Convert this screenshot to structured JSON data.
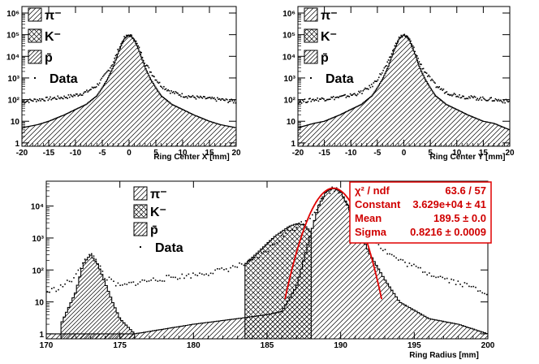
{
  "colors": {
    "fit": "#e00000",
    "stat_box": "#e00000",
    "data": "#000000",
    "frame": "#000000"
  },
  "chart_data": [
    {
      "type": "histogram",
      "log_y": true,
      "xlabel": "Ring Center X [mm]",
      "xlim": [
        -20,
        20
      ],
      "ylim": [
        0.7,
        2000000
      ],
      "x_ticks": [
        "-20",
        "-15",
        "-10",
        "-5",
        "0",
        "5",
        "10",
        "15",
        "20"
      ],
      "y_ticks": [
        "1",
        "10",
        "10²",
        "10³",
        "10⁴",
        "10⁵",
        "10⁶"
      ],
      "legend": [
        "π⁻",
        "K⁻",
        "p̄",
        "Data"
      ],
      "stacks": {
        "pion": {
          "x": [
            -20,
            -17,
            -15,
            -12,
            -10,
            -8,
            -6,
            -5,
            -4,
            -3,
            -2,
            -1,
            0,
            1,
            2,
            3,
            4,
            5,
            6,
            8,
            10,
            12,
            15,
            17,
            20
          ],
          "y": [
            5,
            7,
            10,
            20,
            35,
            60,
            150,
            350,
            900,
            3000,
            15000,
            60000,
            100000,
            60000,
            15000,
            3000,
            900,
            350,
            150,
            60,
            35,
            20,
            10,
            7,
            5
          ]
        },
        "data": {
          "x": [
            -20,
            -17,
            -15,
            -12,
            -10,
            -8,
            -6,
            -5,
            -4,
            -3,
            -2,
            -1,
            0,
            1,
            2,
            3,
            4,
            5,
            6,
            8,
            10,
            12,
            15,
            17,
            20
          ],
          "y": [
            80,
            100,
            110,
            130,
            160,
            220,
            450,
            900,
            2000,
            5000,
            20000,
            65000,
            100000,
            65000,
            20000,
            5000,
            2000,
            900,
            450,
            220,
            160,
            130,
            110,
            100,
            80
          ]
        }
      }
    },
    {
      "type": "histogram",
      "log_y": true,
      "xlabel": "Ring Center Y [mm]",
      "xlim": [
        -20,
        20
      ],
      "ylim": [
        0.7,
        2000000
      ],
      "x_ticks": [
        "-20",
        "-15",
        "-10",
        "-5",
        "0",
        "5",
        "10",
        "15",
        "20"
      ],
      "y_ticks": [
        "1",
        "10",
        "10²",
        "10³",
        "10⁴",
        "10⁵",
        "10⁶"
      ],
      "legend": [
        "π⁻",
        "K⁻",
        "p̄",
        "Data"
      ],
      "stacks": {
        "pion": {
          "x": [
            -20,
            -17,
            -15,
            -12,
            -10,
            -8,
            -6,
            -5,
            -4,
            -3,
            -2,
            -1,
            0,
            1,
            2,
            3,
            4,
            5,
            6,
            8,
            10,
            12,
            15,
            17,
            20
          ],
          "y": [
            5,
            8,
            10,
            20,
            35,
            60,
            150,
            350,
            900,
            3000,
            15000,
            60000,
            100000,
            60000,
            15000,
            3000,
            900,
            350,
            150,
            60,
            35,
            20,
            10,
            8,
            4
          ]
        },
        "data": {
          "x": [
            -20,
            -17,
            -15,
            -12,
            -10,
            -8,
            -6,
            -5,
            -4,
            -3,
            -2,
            -1,
            0,
            1,
            2,
            3,
            4,
            5,
            6,
            8,
            10,
            12,
            15,
            17,
            20
          ],
          "y": [
            80,
            100,
            110,
            130,
            160,
            220,
            450,
            900,
            2000,
            5000,
            20000,
            65000,
            100000,
            65000,
            20000,
            5000,
            2000,
            900,
            450,
            220,
            160,
            130,
            110,
            100,
            80
          ]
        }
      }
    },
    {
      "type": "histogram",
      "log_y": true,
      "xlabel": "Ring Radius [mm]",
      "xlim": [
        170,
        200
      ],
      "ylim": [
        0.7,
        60000
      ],
      "x_ticks": [
        "170",
        "175",
        "180",
        "185",
        "190",
        "195",
        "200"
      ],
      "y_ticks": [
        "1",
        "10",
        "10²",
        "10³",
        "10⁴"
      ],
      "legend": [
        "π⁻",
        "K⁻",
        "p̄",
        "Data"
      ],
      "stacks": {
        "pion": {
          "x": [
            170,
            176,
            180,
            183,
            185,
            186,
            187,
            188,
            188.5,
            189,
            189.5,
            190,
            190.5,
            191,
            192,
            193,
            194,
            196,
            198,
            200
          ],
          "y": [
            1,
            1,
            2,
            3,
            4,
            5,
            30,
            1500,
            10000,
            28000,
            36290,
            28000,
            10000,
            3000,
            300,
            50,
            10,
            3,
            2,
            1
          ]
        },
        "kaon": {
          "x": [
            183.5,
            184.5,
            185.5,
            186.5,
            187,
            187.5,
            188
          ],
          "y": [
            150,
            400,
            1100,
            2300,
            2800,
            2600,
            1500
          ]
        },
        "antiproton": {
          "x": [
            171,
            172,
            172.5,
            173,
            173.5,
            174,
            174.5,
            175,
            176
          ],
          "y": [
            2,
            20,
            150,
            300,
            150,
            40,
            10,
            3,
            1
          ]
        },
        "data": {
          "x": [
            170,
            171,
            172,
            172.5,
            173,
            173.5,
            174,
            175,
            176,
            178,
            180,
            182,
            184,
            185,
            186,
            187,
            188,
            189,
            189.5,
            190,
            191,
            192,
            193,
            194,
            196,
            198,
            200
          ],
          "y": [
            20,
            30,
            60,
            200,
            310,
            180,
            60,
            30,
            40,
            55,
            70,
            100,
            180,
            400,
            1100,
            2300,
            5000,
            25000,
            36290,
            28000,
            5000,
            1200,
            400,
            200,
            80,
            40,
            20
          ]
        }
      },
      "fit": {
        "rows": [
          {
            "label": "χ² / ndf",
            "value": "63.6 / 57"
          },
          {
            "label": "Constant",
            "value": "3.629e+04 ± 41"
          },
          {
            "label": "Mean",
            "value": "189.5 ± 0.0"
          },
          {
            "label": "Sigma",
            "value": "0.8216 ± 0.0009"
          }
        ],
        "constant": 36290,
        "mean": 189.5,
        "sigma": 0.8216
      }
    }
  ]
}
